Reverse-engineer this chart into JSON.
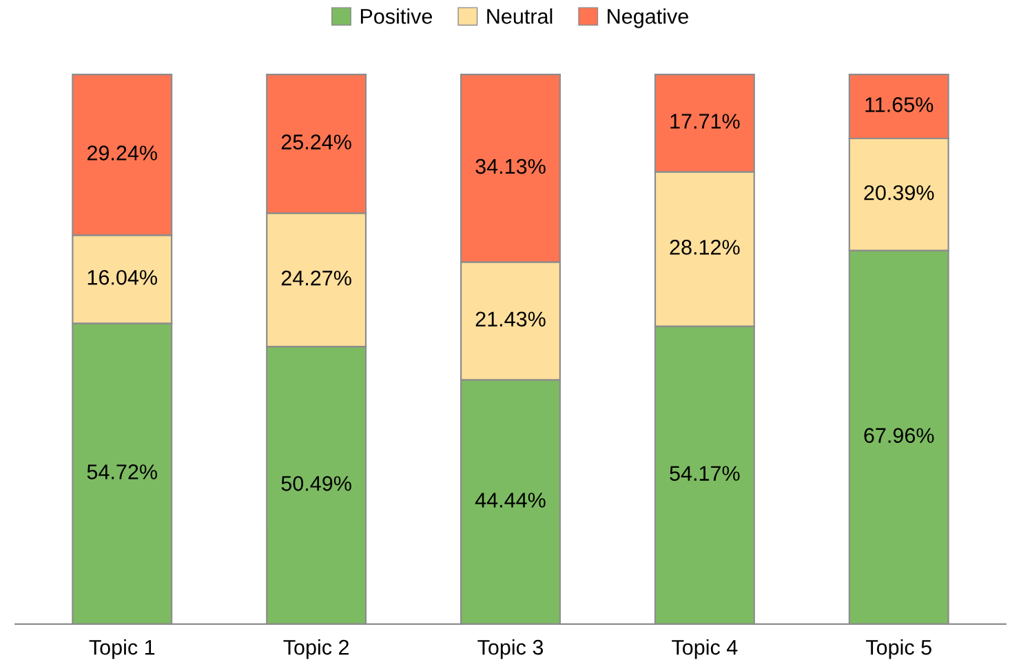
{
  "chart_data": {
    "type": "bar",
    "stacked": true,
    "categories": [
      "Topic 1",
      "Topic 2",
      "Topic 3",
      "Topic 4",
      "Topic 5"
    ],
    "series": [
      {
        "name": "Positive",
        "color": "#7dbb62",
        "values": [
          54.72,
          50.49,
          44.44,
          54.17,
          67.96
        ],
        "value_labels": [
          "54.72%",
          "50.49%",
          "44.44%",
          "54.17%",
          "67.96%"
        ]
      },
      {
        "name": "Neutral",
        "color": "#fedf9c",
        "values": [
          16.04,
          24.27,
          21.43,
          28.12,
          20.39
        ],
        "value_labels": [
          "16.04%",
          "24.27%",
          "21.43%",
          "28.12%",
          "20.39%"
        ]
      },
      {
        "name": "Negative",
        "color": "#ff7552",
        "values": [
          29.24,
          25.24,
          34.13,
          17.71,
          11.65
        ],
        "value_labels": [
          "29.24%",
          "25.24%",
          "34.13%",
          "17.71%",
          "11.65%"
        ]
      }
    ],
    "legend": "top",
    "grid": false,
    "tick_labels": "x"
  }
}
